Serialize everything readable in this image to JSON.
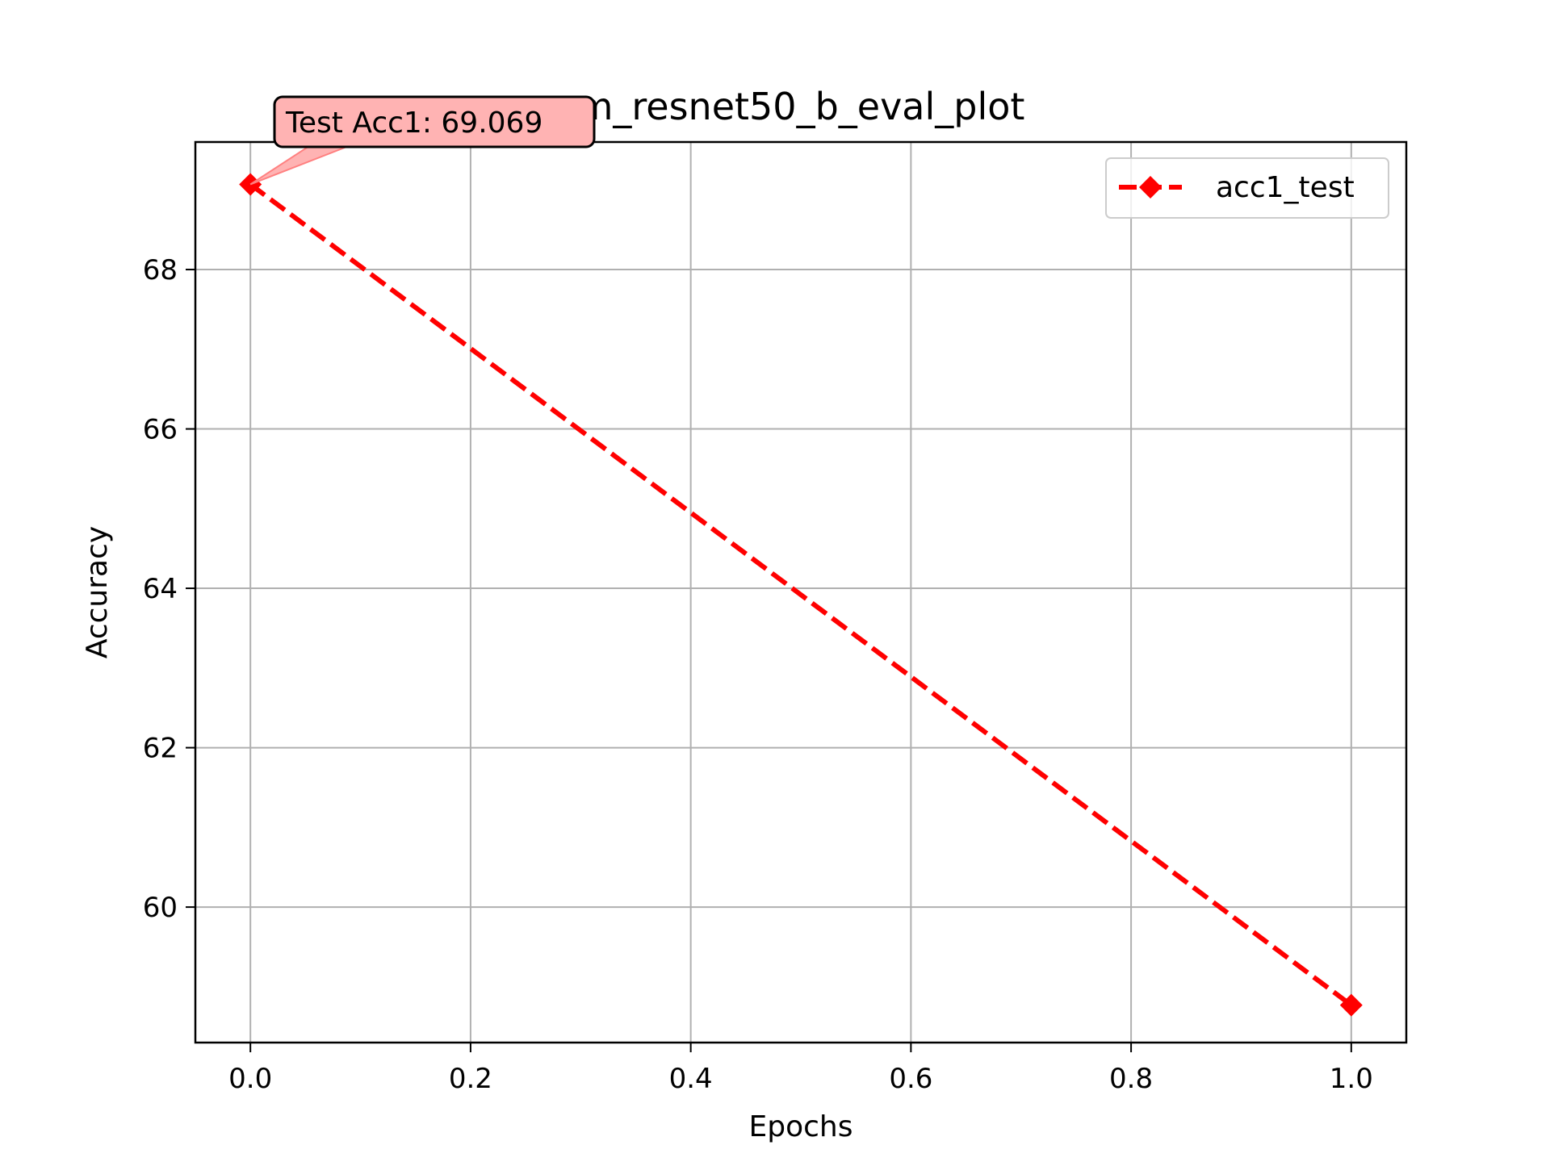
{
  "chart_data": {
    "type": "line",
    "title": "m_resnet50_b_eval_plot",
    "xlabel": "Epochs",
    "ylabel": "Accuracy",
    "xlim": [
      -0.05,
      1.05
    ],
    "ylim": [
      58.3,
      69.6
    ],
    "grid": true,
    "legend_position": "top-right",
    "x_ticks": [
      0.0,
      0.2,
      0.4,
      0.6,
      0.8,
      1.0
    ],
    "x_tick_labels": [
      "0.0",
      "0.2",
      "0.4",
      "0.6",
      "0.8",
      "1.0"
    ],
    "y_ticks": [
      60,
      62,
      64,
      66,
      68
    ],
    "y_tick_labels": [
      "60",
      "62",
      "64",
      "66",
      "68"
    ],
    "series": [
      {
        "name": "acc1_test",
        "color": "#ff0000",
        "line_style": "dashed",
        "marker": "diamond",
        "x": [
          0,
          1
        ],
        "y": [
          69.069,
          58.77
        ]
      }
    ],
    "annotations": [
      {
        "text": "Test Acc1: 69.069",
        "x": 0,
        "y": 69.069,
        "box_color": "#ffb3b3",
        "arrow_color": "#ff8080"
      }
    ]
  }
}
